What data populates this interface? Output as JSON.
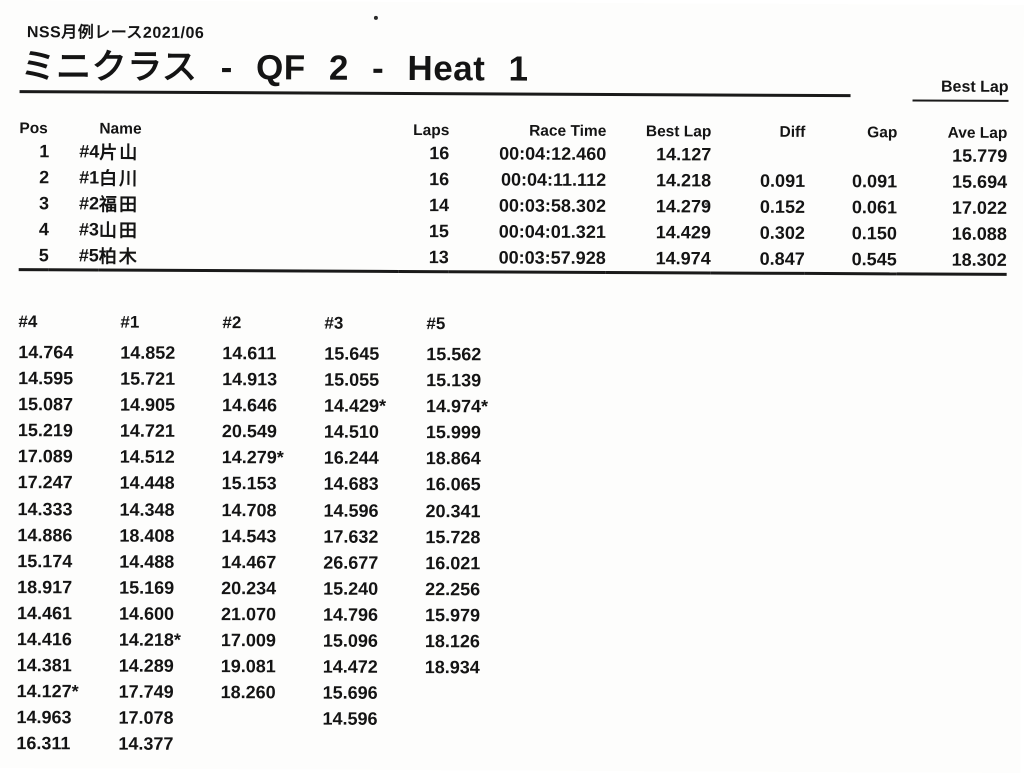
{
  "meta": {
    "event_header": "NSS月例レース2021/06",
    "title": "ミニクラス - QF 2 - Heat 1",
    "corner_label": "Best Lap",
    "ink_color": "#141414"
  },
  "results_table": {
    "headers": {
      "pos": "Pos",
      "name": "Name",
      "laps": "Laps",
      "race_time": "Race Time",
      "best_lap": "Best Lap",
      "diff": "Diff",
      "gap": "Gap",
      "ave_lap": "Ave Lap"
    },
    "rows": [
      {
        "pos": "1",
        "car": "#4",
        "name": "片山",
        "laps": "16",
        "race_time": "00:04:12.460",
        "best_lap": "14.127",
        "diff": "",
        "gap": "",
        "ave_lap": "15.779"
      },
      {
        "pos": "2",
        "car": "#1",
        "name": "白川",
        "laps": "16",
        "race_time": "00:04:11.112",
        "best_lap": "14.218",
        "diff": "0.091",
        "gap": "0.091",
        "ave_lap": "15.694"
      },
      {
        "pos": "3",
        "car": "#2",
        "name": "福田",
        "laps": "14",
        "race_time": "00:03:58.302",
        "best_lap": "14.279",
        "diff": "0.152",
        "gap": "0.061",
        "ave_lap": "17.022"
      },
      {
        "pos": "4",
        "car": "#3",
        "name": "山田",
        "laps": "15",
        "race_time": "00:04:01.321",
        "best_lap": "14.429",
        "diff": "0.302",
        "gap": "0.150",
        "ave_lap": "16.088"
      },
      {
        "pos": "5",
        "car": "#5",
        "name": "柏木",
        "laps": "13",
        "race_time": "00:03:57.928",
        "best_lap": "14.974",
        "diff": "0.847",
        "gap": "0.545",
        "ave_lap": "18.302"
      }
    ]
  },
  "lap_times": {
    "columns": [
      {
        "car": "#4",
        "laps": [
          "14.764",
          "14.595",
          "15.087",
          "15.219",
          "17.089",
          "17.247",
          "14.333",
          "14.886",
          "15.174",
          "18.917",
          "14.461",
          "14.416",
          "14.381",
          "14.127*",
          "14.963",
          "16.311"
        ]
      },
      {
        "car": "#1",
        "laps": [
          "14.852",
          "15.721",
          "14.905",
          "14.721",
          "14.512",
          "14.448",
          "14.348",
          "18.408",
          "14.488",
          "15.169",
          "14.600",
          "14.218*",
          "14.289",
          "17.749",
          "17.078",
          "14.377"
        ]
      },
      {
        "car": "#2",
        "laps": [
          "14.611",
          "14.913",
          "14.646",
          "20.549",
          "14.279*",
          "15.153",
          "14.708",
          "14.543",
          "14.467",
          "20.234",
          "21.070",
          "17.009",
          "19.081",
          "18.260"
        ]
      },
      {
        "car": "#3",
        "laps": [
          "15.645",
          "15.055",
          "14.429*",
          "14.510",
          "16.244",
          "14.683",
          "14.596",
          "17.632",
          "26.677",
          "15.240",
          "14.796",
          "15.096",
          "14.472",
          "15.696",
          "14.596"
        ]
      },
      {
        "car": "#5",
        "laps": [
          "15.562",
          "15.139",
          "14.974*",
          "15.999",
          "18.864",
          "16.065",
          "20.341",
          "15.728",
          "16.021",
          "22.256",
          "15.979",
          "18.126",
          "18.934"
        ]
      }
    ]
  }
}
